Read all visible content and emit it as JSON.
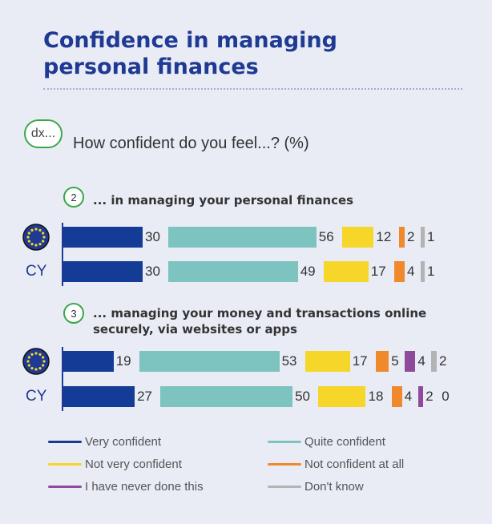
{
  "header": {
    "title_line1": "Confidence in managing",
    "title_line2": "personal finances"
  },
  "intro": {
    "bubble_text": "dx...",
    "question": "How confident do you feel...? (%)"
  },
  "colors": {
    "very_confident": "#143c96",
    "quite_confident": "#7dc3c0",
    "not_very_confident": "#f5d629",
    "not_confident_at_all": "#f0892b",
    "never_done": "#8f4a9b",
    "dont_know": "#b3b3b3",
    "accent": "#1f3a93",
    "bubble_border": "#3aa84a"
  },
  "chart_data": {
    "type": "bar",
    "orientation": "horizontal-stacked",
    "unit": "%",
    "legend_position": "bottom",
    "series_names": [
      "Very confident",
      "Quite confident",
      "Not very confident",
      "Not confident at all",
      "I have never done this",
      "Don't know"
    ],
    "groups": [
      {
        "number": "2",
        "question": "... in managing your personal finances",
        "rows": [
          {
            "label": "EU",
            "icon": "eu-flag-icon",
            "values": [
              30,
              56,
              12,
              2,
              null,
              1
            ]
          },
          {
            "label": "CY",
            "values": [
              30,
              49,
              17,
              4,
              null,
              1
            ]
          }
        ]
      },
      {
        "number": "3",
        "question": "... managing your money and transactions online securely, via websites or apps",
        "rows": [
          {
            "label": "EU",
            "icon": "eu-flag-icon",
            "values": [
              19,
              53,
              17,
              5,
              4,
              2
            ]
          },
          {
            "label": "CY",
            "values": [
              27,
              50,
              18,
              4,
              2,
              0
            ]
          }
        ]
      }
    ]
  }
}
